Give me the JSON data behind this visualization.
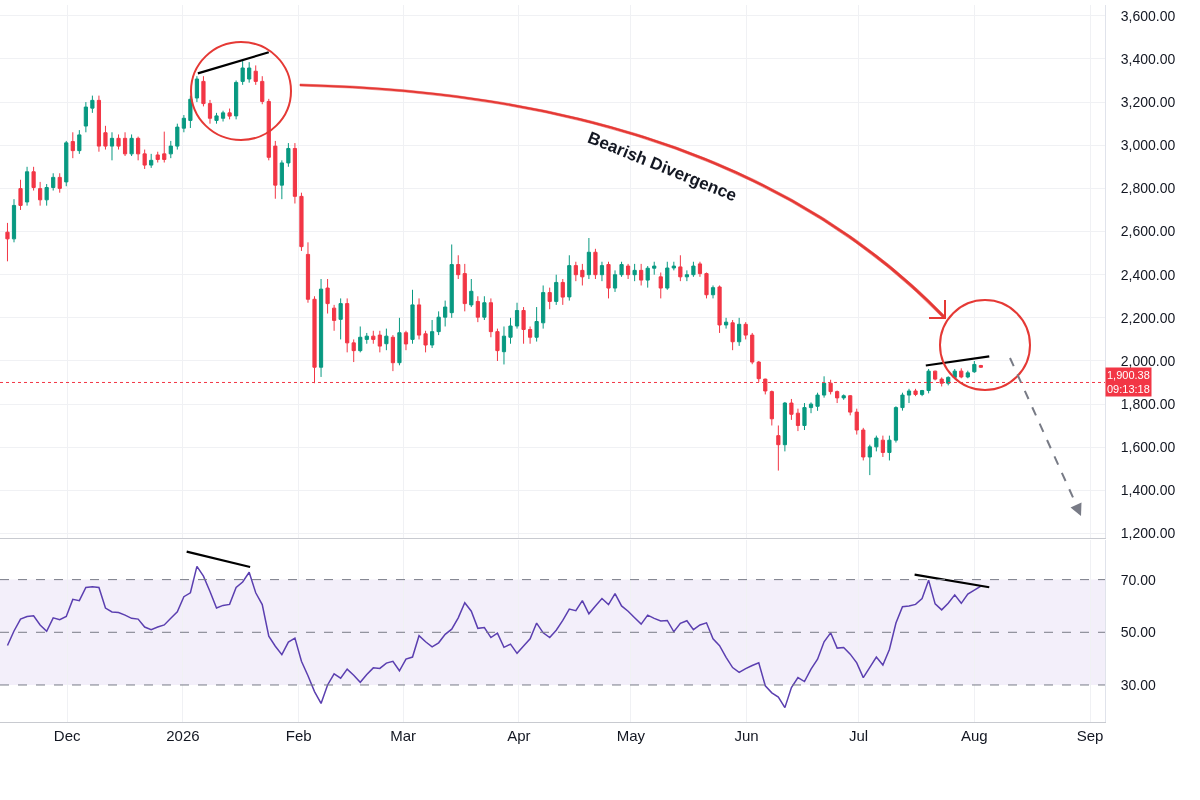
{
  "chart_data": [
    {
      "type": "candlestick",
      "x": [
        "2025-11-15",
        "2025-11-16T18:00",
        "2025-11-18T12:00",
        "2025-11-20T06:00",
        "2025-11-22",
        "2025-11-23T18:00",
        "2025-11-25T12:00",
        "2025-11-27T06:00",
        "2025-11-29",
        "2025-11-30T18:00",
        "2025-12-02T12:00",
        "2025-12-04T06:00",
        "2025-12-06",
        "2025-12-07T18:00",
        "2025-12-09T12:00",
        "2025-12-11T06:00",
        "2025-12-13",
        "2025-12-14T18:00",
        "2025-12-16T12:00",
        "2025-12-18T06:00",
        "2025-12-20",
        "2025-12-21T18:00",
        "2025-12-23T12:00",
        "2025-12-25T06:00",
        "2025-12-27",
        "2025-12-28T18:00",
        "2025-12-30T12:00",
        "2026-01-01T06:00",
        "2026-01-03",
        "2026-01-04T18:00",
        "2026-01-06T12:00",
        "2026-01-08T06:00",
        "2026-01-10",
        "2026-01-11T18:00",
        "2026-01-13T12:00",
        "2026-01-15T06:00",
        "2026-01-17",
        "2026-01-18T18:00",
        "2026-01-20T12:00",
        "2026-01-22T06:00",
        "2026-01-24",
        "2026-01-25T18:00",
        "2026-01-27T12:00",
        "2026-01-29T06:00",
        "2026-01-31",
        "2026-02-01T18:00",
        "2026-02-03T12:00",
        "2026-02-05T06:00",
        "2026-02-07",
        "2026-02-08T18:00",
        "2026-02-10T12:00",
        "2026-02-12T06:00",
        "2026-02-14",
        "2026-02-15T18:00",
        "2026-02-17T12:00",
        "2026-02-19T06:00",
        "2026-02-21",
        "2026-02-22T18:00",
        "2026-02-24T12:00",
        "2026-02-26T06:00",
        "2026-02-28",
        "2026-03-01T18:00",
        "2026-03-03T12:00",
        "2026-03-05T06:00",
        "2026-03-07",
        "2026-03-08T18:00",
        "2026-03-10T12:00",
        "2026-03-12T06:00",
        "2026-03-14",
        "2026-03-15T18:00",
        "2026-03-17T12:00",
        "2026-03-19T06:00",
        "2026-03-21",
        "2026-03-22T18:00",
        "2026-03-24T12:00",
        "2026-03-26T06:00",
        "2026-03-28",
        "2026-03-29T18:00",
        "2026-03-31T12:00",
        "2026-04-02T06:00",
        "2026-04-04",
        "2026-04-05T18:00",
        "2026-04-07T12:00",
        "2026-04-09T06:00",
        "2026-04-11",
        "2026-04-12T18:00",
        "2026-04-14T12:00",
        "2026-04-16T06:00",
        "2026-04-18",
        "2026-04-19T18:00",
        "2026-04-21T12:00",
        "2026-04-23T06:00",
        "2026-04-25",
        "2026-04-26T18:00",
        "2026-04-28T12:00",
        "2026-04-30T06:00",
        "2026-05-02",
        "2026-05-03T18:00",
        "2026-05-05T12:00",
        "2026-05-07T06:00",
        "2026-05-09",
        "2026-05-10T18:00",
        "2026-05-12T12:00",
        "2026-05-14T06:00",
        "2026-05-16",
        "2026-05-17T18:00",
        "2026-05-19T12:00",
        "2026-05-21T06:00",
        "2026-05-23",
        "2026-05-24T18:00",
        "2026-05-26T12:00",
        "2026-05-28T06:00",
        "2026-05-30",
        "2026-05-31T18:00",
        "2026-06-02T12:00",
        "2026-06-04T06:00",
        "2026-06-06",
        "2026-06-07T18:00",
        "2026-06-09T12:00",
        "2026-06-11T06:00",
        "2026-06-13",
        "2026-06-14T18:00",
        "2026-06-16T12:00",
        "2026-06-18T06:00",
        "2026-06-20",
        "2026-06-21T18:00",
        "2026-06-23T12:00",
        "2026-06-25T06:00",
        "2026-06-27",
        "2026-06-28T18:00",
        "2026-06-30T12:00",
        "2026-07-02T06:00",
        "2026-07-04",
        "2026-07-05T18:00",
        "2026-07-07T12:00",
        "2026-07-09T06:00",
        "2026-07-11",
        "2026-07-12T18:00",
        "2026-07-14T12:00",
        "2026-07-16T06:00",
        "2026-07-18",
        "2026-07-19T18:00",
        "2026-07-21T12:00",
        "2026-07-23T06:00",
        "2026-07-25",
        "2026-07-26T18:00",
        "2026-07-28T12:00",
        "2026-07-30T06:00",
        "2026-08-01",
        "2026-08-02T18:00"
      ],
      "ohlc": [
        [
          2597,
          2640,
          2462,
          2566
        ],
        [
          2566,
          2750,
          2550,
          2721
        ],
        [
          2799,
          2840,
          2700,
          2721
        ],
        [
          2737,
          2900,
          2720,
          2877
        ],
        [
          2877,
          2900,
          2790,
          2804
        ],
        [
          2799,
          2830,
          2720,
          2747
        ],
        [
          2747,
          2820,
          2720,
          2804
        ],
        [
          2804,
          2870,
          2790,
          2851
        ],
        [
          2851,
          2870,
          2780,
          2800
        ],
        [
          2830,
          3020,
          2810,
          3011
        ],
        [
          3017,
          3060,
          2940,
          2975
        ],
        [
          2975,
          3070,
          2960,
          3048
        ],
        [
          3089,
          3200,
          3060,
          3177
        ],
        [
          3172,
          3230,
          3150,
          3208
        ],
        [
          3208,
          3230,
          2970,
          2996
        ],
        [
          3058,
          3090,
          2980,
          2996
        ],
        [
          2996,
          3060,
          2930,
          3032
        ],
        [
          3032,
          3050,
          2980,
          2996
        ],
        [
          3032,
          3060,
          2950,
          2960
        ],
        [
          2960,
          3050,
          2950,
          3032
        ],
        [
          3032,
          3040,
          2930,
          2960
        ],
        [
          2960,
          2980,
          2890,
          2908
        ],
        [
          2908,
          2960,
          2895,
          2930
        ],
        [
          2955,
          2970,
          2920,
          2934
        ],
        [
          2960,
          3063,
          2920,
          2934
        ],
        [
          2960,
          3020,
          2940,
          2996
        ],
        [
          2996,
          3100,
          2980,
          3084
        ],
        [
          3079,
          3140,
          3060,
          3125
        ],
        [
          3115,
          3230,
          3080,
          3213
        ],
        [
          3219,
          3320,
          3200,
          3307
        ],
        [
          3296,
          3320,
          3180,
          3193
        ],
        [
          3193,
          3210,
          3100,
          3125
        ],
        [
          3115,
          3150,
          3100,
          3136
        ],
        [
          3125,
          3160,
          3110,
          3150
        ],
        [
          3150,
          3170,
          3120,
          3135
        ],
        [
          3136,
          3300,
          3120,
          3291
        ],
        [
          3296,
          3390,
          3280,
          3358
        ],
        [
          3307,
          3385,
          3290,
          3358
        ],
        [
          3343,
          3370,
          3280,
          3296
        ],
        [
          3296,
          3320,
          3190,
          3203
        ],
        [
          3203,
          3215,
          2930,
          2944
        ],
        [
          2996,
          3020,
          2752,
          2815
        ],
        [
          2815,
          2930,
          2750,
          2918
        ],
        [
          2918,
          3010,
          2900,
          2985
        ],
        [
          2985,
          3010,
          2730,
          2763
        ],
        [
          2763,
          2780,
          2510,
          2530
        ],
        [
          2494,
          2550,
          2270,
          2286
        ],
        [
          2286,
          2300,
          1897,
          1971
        ],
        [
          1971,
          2380,
          1926,
          2333
        ],
        [
          2338,
          2380,
          2220,
          2266
        ],
        [
          2245,
          2260,
          2140,
          2188
        ],
        [
          2193,
          2290,
          2100,
          2266
        ],
        [
          2266,
          2290,
          2040,
          2084
        ],
        [
          2084,
          2100,
          1995,
          2048
        ],
        [
          2048,
          2160,
          2040,
          2110
        ],
        [
          2100,
          2130,
          2080,
          2115
        ],
        [
          2115,
          2140,
          2080,
          2100
        ],
        [
          2120,
          2140,
          2040,
          2069
        ],
        [
          2080,
          2150,
          2050,
          2115
        ],
        [
          2110,
          2120,
          1953,
          1992
        ],
        [
          1992,
          2200,
          1980,
          2131
        ],
        [
          2131,
          2140,
          2050,
          2079
        ],
        [
          2100,
          2330,
          2080,
          2260
        ],
        [
          2260,
          2290,
          2100,
          2120
        ],
        [
          2126,
          2140,
          2040,
          2074
        ],
        [
          2074,
          2190,
          2060,
          2136
        ],
        [
          2136,
          2230,
          2120,
          2203
        ],
        [
          2203,
          2280,
          2160,
          2250
        ],
        [
          2224,
          2540,
          2200,
          2447
        ],
        [
          2447,
          2490,
          2380,
          2400
        ],
        [
          2405,
          2450,
          2230,
          2266
        ],
        [
          2260,
          2380,
          2250,
          2323
        ],
        [
          2276,
          2300,
          2180,
          2203
        ],
        [
          2203,
          2300,
          2190,
          2270
        ],
        [
          2270,
          2290,
          2110,
          2136
        ],
        [
          2136,
          2150,
          2000,
          2048
        ],
        [
          2043,
          2160,
          1984,
          2115
        ],
        [
          2110,
          2200,
          2080,
          2162
        ],
        [
          2162,
          2270,
          2150,
          2234
        ],
        [
          2234,
          2250,
          2080,
          2146
        ],
        [
          2146,
          2160,
          2080,
          2110
        ],
        [
          2110,
          2250,
          2090,
          2183
        ],
        [
          2177,
          2350,
          2150,
          2317
        ],
        [
          2317,
          2340,
          2240,
          2276
        ],
        [
          2276,
          2400,
          2260,
          2364
        ],
        [
          2364,
          2380,
          2260,
          2296
        ],
        [
          2297,
          2490,
          2280,
          2442
        ],
        [
          2442,
          2460,
          2370,
          2400
        ],
        [
          2420,
          2450,
          2350,
          2390
        ],
        [
          2400,
          2570,
          2380,
          2504
        ],
        [
          2504,
          2520,
          2380,
          2400
        ],
        [
          2400,
          2460,
          2370,
          2442
        ],
        [
          2447,
          2460,
          2290,
          2338
        ],
        [
          2338,
          2420,
          2320,
          2400
        ],
        [
          2400,
          2460,
          2390,
          2447
        ],
        [
          2440,
          2450,
          2380,
          2400
        ],
        [
          2400,
          2450,
          2370,
          2420
        ],
        [
          2420,
          2450,
          2350,
          2375
        ],
        [
          2375,
          2440,
          2340,
          2430
        ],
        [
          2430,
          2460,
          2400,
          2440
        ],
        [
          2390,
          2410,
          2290,
          2338
        ],
        [
          2338,
          2460,
          2330,
          2431
        ],
        [
          2431,
          2460,
          2420,
          2440
        ],
        [
          2436,
          2490,
          2370,
          2390
        ],
        [
          2390,
          2420,
          2370,
          2400
        ],
        [
          2400,
          2460,
          2390,
          2440
        ],
        [
          2450,
          2460,
          2390,
          2405
        ],
        [
          2405,
          2410,
          2290,
          2307
        ],
        [
          2307,
          2350,
          2290,
          2340
        ],
        [
          2343,
          2350,
          2130,
          2167
        ],
        [
          2167,
          2200,
          2150,
          2180
        ],
        [
          2177,
          2190,
          2050,
          2089
        ],
        [
          2089,
          2200,
          2070,
          2170
        ],
        [
          2170,
          2180,
          2100,
          2120
        ],
        [
          2120,
          2130,
          1985,
          1995
        ],
        [
          1995,
          2000,
          1903,
          1918
        ],
        [
          1916,
          1918,
          1845,
          1861
        ],
        [
          1858,
          1863,
          1701,
          1732
        ],
        [
          1654,
          1701,
          1492,
          1612
        ],
        [
          1612,
          1810,
          1581,
          1805
        ],
        [
          1805,
          1824,
          1727,
          1753
        ],
        [
          1758,
          1779,
          1675,
          1701
        ],
        [
          1701,
          1805,
          1680,
          1784
        ],
        [
          1784,
          1808,
          1758,
          1800
        ],
        [
          1790,
          1853,
          1769,
          1842
        ],
        [
          1842,
          1929,
          1830,
          1897
        ],
        [
          1897,
          1913,
          1845,
          1858
        ],
        [
          1858,
          1863,
          1805,
          1829
        ],
        [
          1829,
          1845,
          1820,
          1839
        ],
        [
          1839,
          1842,
          1748,
          1763
        ],
        [
          1763,
          1779,
          1659,
          1680
        ],
        [
          1680,
          1690,
          1539,
          1555
        ],
        [
          1555,
          1612,
          1471,
          1602
        ],
        [
          1602,
          1654,
          1581,
          1643
        ],
        [
          1633,
          1654,
          1555,
          1576
        ],
        [
          1576,
          1654,
          1539,
          1633
        ],
        [
          1633,
          1790,
          1622,
          1784
        ],
        [
          1784,
          1853,
          1770,
          1842
        ],
        [
          1842,
          1871,
          1805,
          1861
        ],
        [
          1861,
          1871,
          1837,
          1845
        ],
        [
          1845,
          1866,
          1837,
          1863
        ],
        [
          1863,
          1963,
          1850,
          1953
        ],
        [
          1953,
          1955,
          1910,
          1916
        ],
        [
          1916,
          1924,
          1882,
          1897
        ],
        [
          1897,
          1929,
          1887,
          1924
        ],
        [
          1924,
          1963,
          1916,
          1953
        ],
        [
          1953,
          1966,
          1920,
          1926
        ],
        [
          1926,
          1955,
          1920,
          1945
        ],
        [
          1950,
          2000,
          1945,
          1984
        ],
        [
          1979,
          1982,
          1968,
          1971
        ]
      ],
      "colors": [
        "#f23645",
        "#089981",
        "#f23645",
        "#089981",
        "#f23645",
        "#f23645",
        "#089981",
        "#089981",
        "#f23645",
        "#089981",
        "#f23645",
        "#089981",
        "#089981",
        "#089981",
        "#f23645",
        "#f23645",
        "#089981",
        "#f23645",
        "#f23645",
        "#089981",
        "#f23645",
        "#f23645",
        "#089981",
        "#f23645",
        "#f23645",
        "#089981",
        "#089981",
        "#089981",
        "#089981",
        "#089981",
        "#f23645",
        "#f23645",
        "#089981",
        "#089981",
        "#f23645",
        "#089981",
        "#089981",
        "#089981",
        "#f23645",
        "#f23645",
        "#f23645",
        "#f23645",
        "#089981",
        "#089981",
        "#f23645",
        "#f23645",
        "#f23645",
        "#f23645",
        "#089981",
        "#f23645",
        "#f23645",
        "#089981",
        "#f23645",
        "#f23645",
        "#089981",
        "#089981",
        "#f23645",
        "#f23645",
        "#089981",
        "#f23645",
        "#089981",
        "#f23645",
        "#089981",
        "#f23645",
        "#f23645",
        "#089981",
        "#089981",
        "#089981",
        "#089981",
        "#f23645",
        "#f23645",
        "#089981",
        "#f23645",
        "#089981",
        "#f23645",
        "#f23645",
        "#089981",
        "#089981",
        "#089981",
        "#f23645",
        "#f23645",
        "#089981",
        "#089981",
        "#f23645",
        "#089981",
        "#f23645",
        "#089981",
        "#f23645",
        "#f23645",
        "#089981",
        "#f23645",
        "#089981",
        "#f23645",
        "#089981",
        "#089981",
        "#f23645",
        "#089981",
        "#f23645",
        "#089981",
        "#089981",
        "#f23645",
        "#089981",
        "#089981",
        "#f23645",
        "#089981",
        "#089981",
        "#f23645",
        "#f23645",
        "#089981",
        "#f23645",
        "#089981",
        "#f23645",
        "#089981",
        "#f23645",
        "#f23645",
        "#f23645",
        "#f23645",
        "#f23645",
        "#f23645",
        "#089981",
        "#f23645",
        "#f23645",
        "#089981",
        "#089981",
        "#089981",
        "#089981",
        "#f23645",
        "#f23645",
        "#089981",
        "#f23645",
        "#f23645",
        "#f23645",
        "#089981",
        "#089981",
        "#f23645",
        "#089981",
        "#089981",
        "#089981",
        "#089981",
        "#f23645",
        "#089981",
        "#089981",
        "#f23645",
        "#f23645",
        "#089981",
        "#089981",
        "#f23645",
        "#089981",
        "#089981",
        "#f23645"
      ],
      "series": [
        {
          "type": "line",
          "color": "#000000",
          "x": [
            "2026-01-05",
            "2026-01-24"
          ],
          "values": [
            3333,
            3431
          ]
        },
        {
          "type": "line",
          "color": "#000000",
          "x": [
            "2026-07-19",
            "2026-08-05"
          ],
          "values": [
            1979,
            2021
          ]
        }
      ],
      "xlim": [
        "2025-11-13",
        "2026-09-05"
      ],
      "xticks": [
        {
          "value": "2025-12-01",
          "label": null
        },
        {
          "value": "2026-01-01",
          "label": null
        },
        {
          "value": "2026-02-01",
          "label": null
        },
        {
          "value": "2026-03-01",
          "label": null
        },
        {
          "value": "2026-04-01",
          "label": null
        },
        {
          "value": "2026-05-01",
          "label": null
        },
        {
          "value": "2026-06-01",
          "label": null
        },
        {
          "value": "2026-07-01",
          "label": null
        },
        {
          "value": "2026-08-01",
          "label": null
        },
        {
          "value": "2026-09-01",
          "label": null
        }
      ],
      "ylim": [
        1180,
        3650
      ],
      "yticks": [
        {
          "value": 1200,
          "label": "1,200.00"
        },
        {
          "value": 1400,
          "label": "1,400.00"
        },
        {
          "value": 1600,
          "label": "1,600.00"
        },
        {
          "value": 1800,
          "label": "1,800.00"
        },
        {
          "value": 2000,
          "label": "2,000.00"
        },
        {
          "value": 2200,
          "label": "2,200.00"
        },
        {
          "value": 2400,
          "label": "2,400.00"
        },
        {
          "value": 2600,
          "label": "2,600.00"
        },
        {
          "value": 2800,
          "label": "2,800.00"
        },
        {
          "value": 3000,
          "label": "3,000.00"
        },
        {
          "value": 3200,
          "label": "3,200.00"
        },
        {
          "value": 3400,
          "label": "3,400.00"
        },
        {
          "value": 3600,
          "label": "3,600.00"
        }
      ],
      "grid": true,
      "tick_labels": "y",
      "ref_lines": [
        {
          "axis": "y",
          "value": 1900.38,
          "label": "1,900.38\n09:13:18",
          "color": "#f23645",
          "line_style": "dotted"
        }
      ],
      "annotations": [
        "Bearish Divergence"
      ]
    },
    {
      "type": "line",
      "x": [
        "2025-11-15",
        "2025-11-16T18:00",
        "2025-11-18T12:00",
        "2025-11-20T06:00",
        "2025-11-22",
        "2025-11-23T18:00",
        "2025-11-25T12:00",
        "2025-11-27T06:00",
        "2025-11-29",
        "2025-11-30T18:00",
        "2025-12-02T12:00",
        "2025-12-04T06:00",
        "2025-12-06",
        "2025-12-07T18:00",
        "2025-12-09T12:00",
        "2025-12-11T06:00",
        "2025-12-13",
        "2025-12-14T18:00",
        "2025-12-16T12:00",
        "2025-12-18T06:00",
        "2025-12-20",
        "2025-12-21T18:00",
        "2025-12-23T12:00",
        "2025-12-25T06:00",
        "2025-12-27",
        "2025-12-28T18:00",
        "2025-12-30T12:00",
        "2026-01-01T06:00",
        "2026-01-03",
        "2026-01-04T18:00",
        "2026-01-06T12:00",
        "2026-01-08T06:00",
        "2026-01-10",
        "2026-01-11T18:00",
        "2026-01-13T12:00",
        "2026-01-15T06:00",
        "2026-01-17",
        "2026-01-18T18:00",
        "2026-01-20T12:00",
        "2026-01-22T06:00",
        "2026-01-24",
        "2026-01-25T18:00",
        "2026-01-27T12:00",
        "2026-01-29T06:00",
        "2026-01-31",
        "2026-02-01T18:00",
        "2026-02-03T12:00",
        "2026-02-05T06:00",
        "2026-02-07",
        "2026-02-08T18:00",
        "2026-02-10T12:00",
        "2026-02-12T06:00",
        "2026-02-14",
        "2026-02-15T18:00",
        "2026-02-17T12:00",
        "2026-02-19T06:00",
        "2026-02-21",
        "2026-02-22T18:00",
        "2026-02-24T12:00",
        "2026-02-26T06:00",
        "2026-02-28",
        "2026-03-01T18:00",
        "2026-03-03T12:00",
        "2026-03-05T06:00",
        "2026-03-07",
        "2026-03-08T18:00",
        "2026-03-10T12:00",
        "2026-03-12T06:00",
        "2026-03-14",
        "2026-03-15T18:00",
        "2026-03-17T12:00",
        "2026-03-19T06:00",
        "2026-03-21",
        "2026-03-22T18:00",
        "2026-03-24T12:00",
        "2026-03-26T06:00",
        "2026-03-28",
        "2026-03-29T18:00",
        "2026-03-31T12:00",
        "2026-04-02T06:00",
        "2026-04-04",
        "2026-04-05T18:00",
        "2026-04-07T12:00",
        "2026-04-09T06:00",
        "2026-04-11",
        "2026-04-12T18:00",
        "2026-04-14T12:00",
        "2026-04-16T06:00",
        "2026-04-18",
        "2026-04-19T18:00",
        "2026-04-21T12:00",
        "2026-04-23T06:00",
        "2026-04-25",
        "2026-04-26T18:00",
        "2026-04-28T12:00",
        "2026-04-30T06:00",
        "2026-05-02",
        "2026-05-03T18:00",
        "2026-05-05T12:00",
        "2026-05-07T06:00",
        "2026-05-09",
        "2026-05-10T18:00",
        "2026-05-12T12:00",
        "2026-05-14T06:00",
        "2026-05-16",
        "2026-05-17T18:00",
        "2026-05-19T12:00",
        "2026-05-21T06:00",
        "2026-05-23",
        "2026-05-24T18:00",
        "2026-05-26T12:00",
        "2026-05-28T06:00",
        "2026-05-30",
        "2026-05-31T18:00",
        "2026-06-02T12:00",
        "2026-06-04T06:00",
        "2026-06-06",
        "2026-06-07T18:00",
        "2026-06-09T12:00",
        "2026-06-11T06:00",
        "2026-06-13",
        "2026-06-14T18:00",
        "2026-06-16T12:00",
        "2026-06-18T06:00",
        "2026-06-20",
        "2026-06-21T18:00",
        "2026-06-23T12:00",
        "2026-06-25T06:00",
        "2026-06-27",
        "2026-06-28T18:00",
        "2026-06-30T12:00",
        "2026-07-02T06:00",
        "2026-07-04",
        "2026-07-05T18:00",
        "2026-07-07T12:00",
        "2026-07-09T06:00",
        "2026-07-11",
        "2026-07-12T18:00",
        "2026-07-14T12:00",
        "2026-07-16T06:00",
        "2026-07-18",
        "2026-07-19T18:00",
        "2026-07-21T12:00",
        "2026-07-23T06:00",
        "2026-07-25",
        "2026-07-26T18:00",
        "2026-07-28T12:00",
        "2026-07-30T06:00",
        "2026-08-01",
        "2026-08-02T18:00"
      ],
      "values": [
        45,
        50.5,
        55,
        56,
        56.3,
        52.8,
        50.4,
        55.5,
        54.8,
        56,
        62.5,
        62,
        67,
        67.3,
        67,
        59.2,
        57.7,
        57.5,
        56.5,
        55.3,
        55,
        52,
        51,
        52,
        52.8,
        55.3,
        57.8,
        63.5,
        65,
        75,
        71.3,
        65.5,
        59.2,
        60.2,
        60.6,
        67,
        69.1,
        72.8,
        65,
        60.5,
        48.5,
        44.7,
        41.5,
        46.3,
        47.8,
        39,
        33.5,
        27.5,
        23,
        30,
        34.2,
        32.6,
        36,
        33.7,
        31,
        34,
        36.5,
        36.3,
        38.3,
        39,
        35.4,
        39.8,
        40.6,
        48.7,
        46.4,
        44.5,
        46,
        49.2,
        51.2,
        55.5,
        61.2,
        58,
        51.5,
        51.8,
        48,
        49.7,
        44.3,
        45.5,
        42,
        44.8,
        47.5,
        53.5,
        49.8,
        48,
        50.8,
        54.5,
        58.8,
        58.2,
        62,
        57,
        60,
        62.8,
        60.5,
        64.7,
        60,
        58,
        55.5,
        53.1,
        56.5,
        55.3,
        54.3,
        54.5,
        50.2,
        53.4,
        54.4,
        51,
        52.8,
        53.6,
        47.5,
        44.9,
        40.5,
        36.6,
        34.8,
        36.2,
        37.4,
        38.4,
        29.7,
        27,
        25.4,
        21.4,
        29,
        32.8,
        31.3,
        36,
        39.8,
        46.4,
        49.8,
        44,
        44.2,
        41.7,
        38.4,
        32.8,
        36.7,
        40.6,
        37.6,
        43.5,
        53.5,
        59.7,
        60,
        60.6,
        62.8,
        69.8,
        60.8,
        58.5,
        61,
        64.2,
        61,
        64.5,
        66,
        67.5
      ],
      "color": "#5b3fb0",
      "series": [
        {
          "type": "line",
          "color": "#000000",
          "x": [
            "2026-01-02",
            "2026-01-19"
          ],
          "values": [
            80.6,
            74.8
          ]
        },
        {
          "type": "line",
          "color": "#000000",
          "x": [
            "2026-07-16",
            "2026-08-05"
          ],
          "values": [
            71.9,
            67.1
          ]
        }
      ],
      "xlim": [
        "2025-11-13",
        "2026-09-05"
      ],
      "xticks": [
        {
          "value": "2025-12-01",
          "label": "Dec"
        },
        {
          "value": "2026-01-01",
          "label": "2026"
        },
        {
          "value": "2026-02-01",
          "label": "Feb"
        },
        {
          "value": "2026-03-01",
          "label": "Mar"
        },
        {
          "value": "2026-04-01",
          "label": "Apr"
        },
        {
          "value": "2026-05-01",
          "label": "May"
        },
        {
          "value": "2026-06-01",
          "label": "Jun"
        },
        {
          "value": "2026-07-01",
          "label": "Jul"
        },
        {
          "value": "2026-08-01",
          "label": "Aug"
        },
        {
          "value": "2026-09-01",
          "label": "Sep"
        }
      ],
      "ylim": [
        16,
        85
      ],
      "yticks": [
        {
          "value": 30,
          "label": "30.00"
        },
        {
          "value": 50,
          "label": "50.00"
        },
        {
          "value": 70,
          "label": "70.00"
        }
      ],
      "grid": "x",
      "ref_lines": [
        {
          "axis": "y",
          "value": 30,
          "color": "#787b86",
          "line_style": "dashed"
        },
        {
          "axis": "y",
          "value": 50,
          "color": "#787b86",
          "line_style": "dashed"
        },
        {
          "axis": "y",
          "value": 70,
          "color": "#787b86",
          "line_style": "dashed"
        }
      ],
      "bands": [
        {
          "axis": "y",
          "from": 30,
          "to": 70,
          "color": "#f3effa"
        }
      ]
    }
  ]
}
